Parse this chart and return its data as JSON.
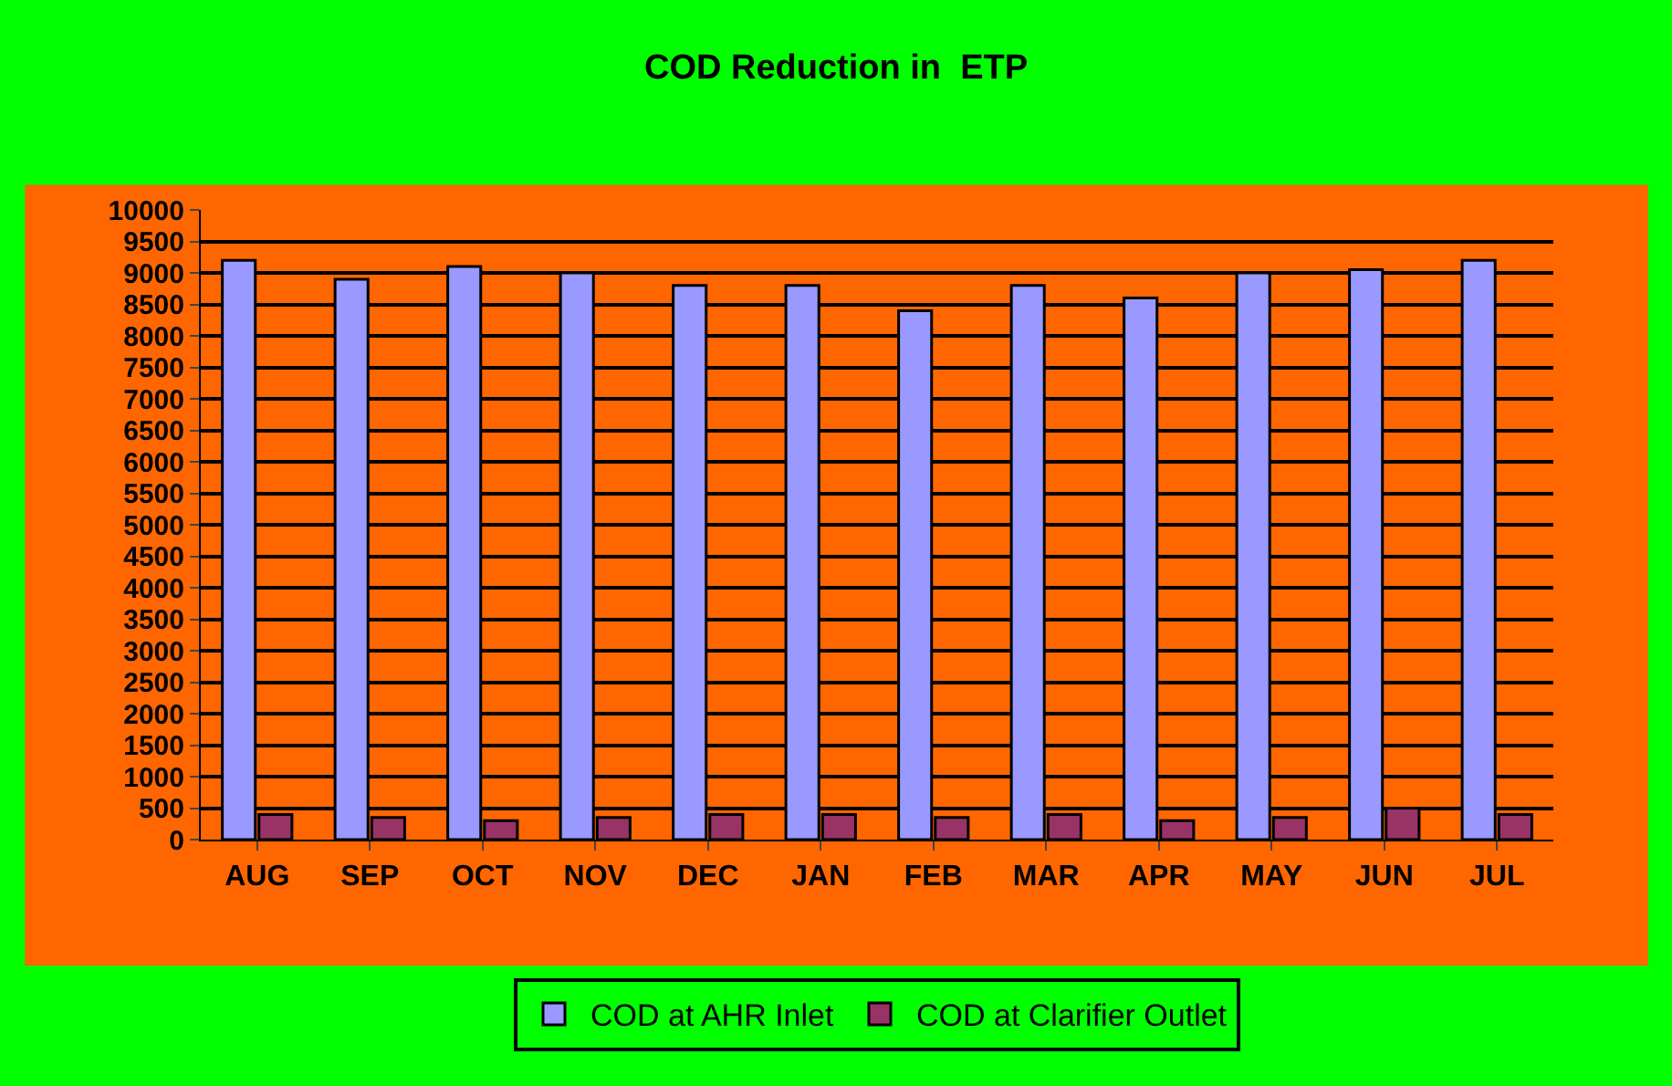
{
  "chart_data": {
    "type": "bar",
    "title": "COD Reduction in  ETP",
    "categories": [
      "AUG",
      "SEP",
      "OCT",
      "NOV",
      "DEC",
      "JAN",
      "FEB",
      "MAR",
      "APR",
      "MAY",
      "JUN",
      "JUL"
    ],
    "series": [
      {
        "name": "COD at AHR Inlet",
        "color": "#9999ff",
        "values": [
          9200,
          8900,
          9100,
          9000,
          8800,
          8800,
          8400,
          8800,
          8600,
          9000,
          9050,
          9200
        ]
      },
      {
        "name": "COD at Clarifier Outlet",
        "color": "#993366",
        "values": [
          400,
          350,
          300,
          350,
          400,
          400,
          350,
          400,
          300,
          350,
          500,
          400
        ]
      }
    ],
    "ylim": [
      0,
      10000
    ],
    "yticks": [
      0,
      500,
      1000,
      1500,
      2000,
      2500,
      3000,
      3500,
      4000,
      4500,
      5000,
      5500,
      6000,
      6500,
      7000,
      7500,
      8000,
      8500,
      9000,
      9500,
      10000
    ],
    "grid": "y",
    "legend": "bottom"
  }
}
